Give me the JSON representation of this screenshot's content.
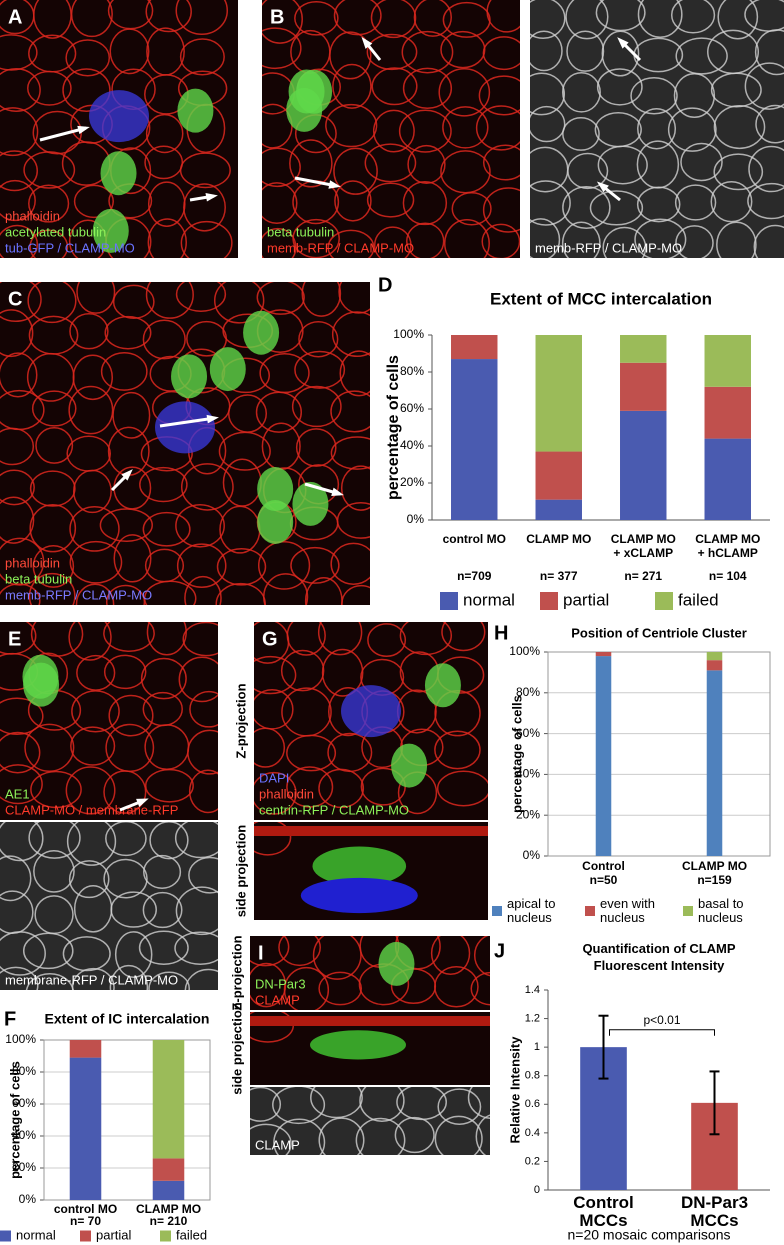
{
  "panels": [
    {
      "letter": "A",
      "labels": [
        {
          "text": "phalloidin",
          "color": "#ff4a3a"
        },
        {
          "text": "acetylated tubulin",
          "color": "#8df25a"
        },
        {
          "text": "tub-GFP / CLAMP-MO",
          "color": "#6a72ff"
        }
      ]
    },
    {
      "letter": "B",
      "labels": [
        {
          "text": "beta tubulin",
          "color": "#8df25a"
        },
        {
          "text": "memb-RFP / CLAMP-MO",
          "color": "#ff3a2a"
        }
      ]
    },
    {
      "labels": [
        {
          "text": "memb-RFP / CLAMP-MO",
          "color": "#ffffff"
        }
      ]
    },
    {
      "letter": "C",
      "labels": [
        {
          "text": "phalloidin",
          "color": "#ff4a3a"
        },
        {
          "text": "beta tubulin",
          "color": "#8df25a"
        },
        {
          "text": "memb-RFP / CLAMP-MO",
          "color": "#7a7aff"
        }
      ]
    },
    {
      "letter": "E",
      "labels": [
        {
          "text": "AE1",
          "color": "#8df25a"
        },
        {
          "text": "CLAMP-MO / membrane-RFP",
          "color": "#ff3a2a"
        }
      ]
    },
    {
      "labels": [
        {
          "text": "membrane-RFP / CLAMP-MO",
          "color": "#ffffff"
        }
      ]
    },
    {
      "letter": "G",
      "side": "Z-projection",
      "labels": [
        {
          "text": "DAPI",
          "color": "#6a72ff"
        },
        {
          "text": "phalloidin",
          "color": "#ff4a3a"
        },
        {
          "text": "centrin-RFP / CLAMP-MO",
          "color": "#8df25a"
        }
      ]
    },
    {
      "side": "side projection",
      "labels": []
    },
    {
      "letter": "I",
      "side": "Z-projection",
      "labels": [
        {
          "text": "DN-Par3",
          "color": "#8df25a"
        },
        {
          "text": "CLAMP",
          "color": "#ff3a2a"
        }
      ]
    },
    {
      "side": "side projection",
      "labels": []
    },
    {
      "labels": [
        {
          "text": "CLAMP",
          "color": "#ffffff"
        }
      ]
    }
  ],
  "chart_data": [
    {
      "type": "stacked_bar",
      "letter": "D",
      "title": "Extent of MCC intercalation",
      "ylabel": "percentage of cells",
      "categories": [
        "control MO",
        "CLAMP MO",
        "CLAMP MO\n+ xCLAMP",
        "CLAMP MO\n+ hCLAMP"
      ],
      "n_labels": [
        "n=709",
        "n= 377",
        "n= 271",
        "n= 104"
      ],
      "series": [
        {
          "name": "normal",
          "color": "#4a5bb0",
          "values": [
            87,
            11,
            59,
            44
          ]
        },
        {
          "name": "partial",
          "color": "#c0504d",
          "values": [
            13,
            26,
            26,
            28
          ]
        },
        {
          "name": "failed",
          "color": "#9bbb59",
          "values": [
            0,
            63,
            15,
            28
          ]
        }
      ],
      "ylim": [
        0,
        100
      ],
      "yticks": [
        {
          "value": 0,
          "label": "0%"
        },
        {
          "value": 20,
          "label": "20%"
        },
        {
          "value": 40,
          "label": "40%"
        },
        {
          "value": 60,
          "label": "60%"
        },
        {
          "value": 80,
          "label": "80%"
        },
        {
          "value": 100,
          "label": "100%"
        }
      ],
      "grid": false
    },
    {
      "type": "stacked_bar",
      "letter": "F",
      "title": "Extent of IC intercalation",
      "ylabel": "percentage of cells",
      "categories": [
        "control MO",
        "CLAMP MO"
      ],
      "n_labels": [
        "n= 70",
        "n= 210"
      ],
      "series": [
        {
          "name": "normal",
          "color": "#4a5bb0",
          "values": [
            89,
            12
          ]
        },
        {
          "name": "partial",
          "color": "#c0504d",
          "values": [
            11,
            14
          ]
        },
        {
          "name": "failed",
          "color": "#9bbb59",
          "values": [
            0,
            74
          ]
        }
      ],
      "ylim": [
        0,
        100
      ],
      "yticks": [
        {
          "value": 0,
          "label": "0%"
        },
        {
          "value": 20,
          "label": "20%"
        },
        {
          "value": 40,
          "label": "40%"
        },
        {
          "value": 60,
          "label": "60%"
        },
        {
          "value": 80,
          "label": "80%"
        },
        {
          "value": 100,
          "label": "100%"
        }
      ],
      "grid": true
    },
    {
      "type": "stacked_bar",
      "letter": "H",
      "title": "Position of Centriole Cluster",
      "ylabel": "percentage of cells",
      "categories": [
        "Control",
        "CLAMP MO"
      ],
      "n_labels": [
        "n=50",
        "n=159"
      ],
      "series": [
        {
          "name": "apical to\nnucleus",
          "color": "#4f81bd",
          "values": [
            98,
            91
          ]
        },
        {
          "name": "even with\nnucleus",
          "color": "#c0504d",
          "values": [
            2,
            5
          ]
        },
        {
          "name": "basal to\nnucleus",
          "color": "#9bbb59",
          "values": [
            0,
            4
          ]
        }
      ],
      "ylim": [
        0,
        100
      ],
      "yticks": [
        {
          "value": 0,
          "label": "0%"
        },
        {
          "value": 20,
          "label": "20%"
        },
        {
          "value": 40,
          "label": "40%"
        },
        {
          "value": 60,
          "label": "60%"
        },
        {
          "value": 80,
          "label": "80%"
        },
        {
          "value": 100,
          "label": "100%"
        }
      ],
      "grid": true
    },
    {
      "type": "error_bar",
      "letter": "J",
      "title": "Quantification of CLAMP\nFluorescent Intensity",
      "ylabel": "Relative Intensity",
      "xlabel": "n=20 mosaic comparisons",
      "annotation": "p<0.01",
      "categories": [
        "Control\nMCCs",
        "DN-Par3\nMCCs"
      ],
      "values": [
        1.0,
        0.61
      ],
      "errors": [
        0.22,
        0.22
      ],
      "colors": [
        "#4a5bb0",
        "#c0504d"
      ],
      "ylim": [
        0,
        1.4
      ],
      "yticks": [
        0,
        0.2,
        0.4,
        0.6,
        0.8,
        1,
        1.2,
        1.4
      ],
      "grid": false
    }
  ]
}
